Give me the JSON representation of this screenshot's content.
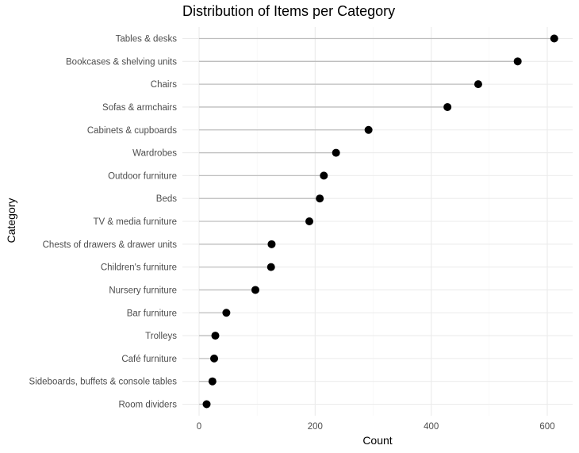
{
  "chart_data": {
    "type": "lollipop",
    "title": "Distribution of Items per Category",
    "xlabel": "Count",
    "ylabel": "Category",
    "xlim": [
      0,
      650
    ],
    "x_ticks": [
      0,
      200,
      400,
      600
    ],
    "x_tick_labels": [
      "0",
      "200",
      "400",
      "600"
    ],
    "grid": true,
    "categories": [
      "Tables & desks",
      "Bookcases & shelving units",
      "Chairs",
      "Sofas & armchairs",
      "Cabinets & cupboards",
      "Wardrobes",
      "Outdoor furniture",
      "Beds",
      "TV & media furniture",
      "Chests of drawers & drawer units",
      "Children's furniture",
      "Nursery furniture",
      "Bar furniture",
      "Trolleys",
      "Café furniture",
      "Sideboards, buffets & console tables",
      "Room dividers"
    ],
    "values": [
      612,
      549,
      481,
      428,
      292,
      236,
      215,
      208,
      190,
      125,
      124,
      97,
      47,
      28,
      26,
      23,
      13
    ],
    "point_color": "#000000",
    "stem_color": "#bebebe"
  }
}
